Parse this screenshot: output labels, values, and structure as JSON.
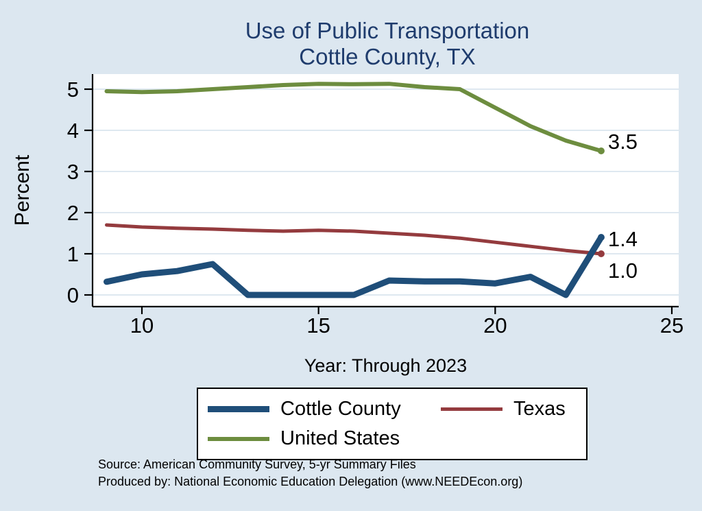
{
  "page": {
    "background_color": "#dce7f0",
    "title_color": "#1f3c6d"
  },
  "chart_data": {
    "type": "line",
    "title": "Use of Public Transportation",
    "subtitle": "Cottle County, TX",
    "xlabel": "Year: Through 2023",
    "ylabel": "Percent",
    "x": [
      9,
      10,
      11,
      12,
      13,
      14,
      15,
      16,
      17,
      18,
      19,
      20,
      21,
      22,
      23
    ],
    "xticks": [
      10,
      15,
      20,
      25
    ],
    "yticks": [
      0,
      1,
      2,
      3,
      4,
      5
    ],
    "xlim": [
      8.6,
      25.2
    ],
    "ylim": [
      -0.28,
      5.37
    ],
    "grid": true,
    "series": [
      {
        "name": "Cottle County",
        "color": "#1f4e79",
        "width": 9,
        "values": [
          0.32,
          0.5,
          0.58,
          0.75,
          0.0,
          0.0,
          0.0,
          0.0,
          0.35,
          0.33,
          0.33,
          0.28,
          0.44,
          0.0,
          1.4
        ],
        "end_label": "1.4",
        "label_dy": 2
      },
      {
        "name": "Texas",
        "color": "#943b3e",
        "width": 5,
        "values": [
          1.7,
          1.65,
          1.62,
          1.6,
          1.57,
          1.55,
          1.57,
          1.55,
          1.5,
          1.45,
          1.38,
          1.28,
          1.18,
          1.08,
          1.0
        ],
        "end_label": "1.0",
        "label_dy": 24
      },
      {
        "name": "United States",
        "color": "#6d8d3f",
        "width": 6,
        "values": [
          4.95,
          4.93,
          4.95,
          5.0,
          5.05,
          5.1,
          5.13,
          5.12,
          5.13,
          5.05,
          5.0,
          4.55,
          4.1,
          3.75,
          3.5
        ],
        "end_label": "3.5",
        "label_dy": -14
      }
    ],
    "legend": {
      "position": "bottom",
      "entries": [
        "Cottle County",
        "Texas",
        "United States"
      ]
    }
  },
  "footer": {
    "source_line1": "Source: American Community Survey, 5-yr Summary Files",
    "source_line2": "Produced by: National Economic Education Delegation (www.NEEDEcon.org)"
  }
}
